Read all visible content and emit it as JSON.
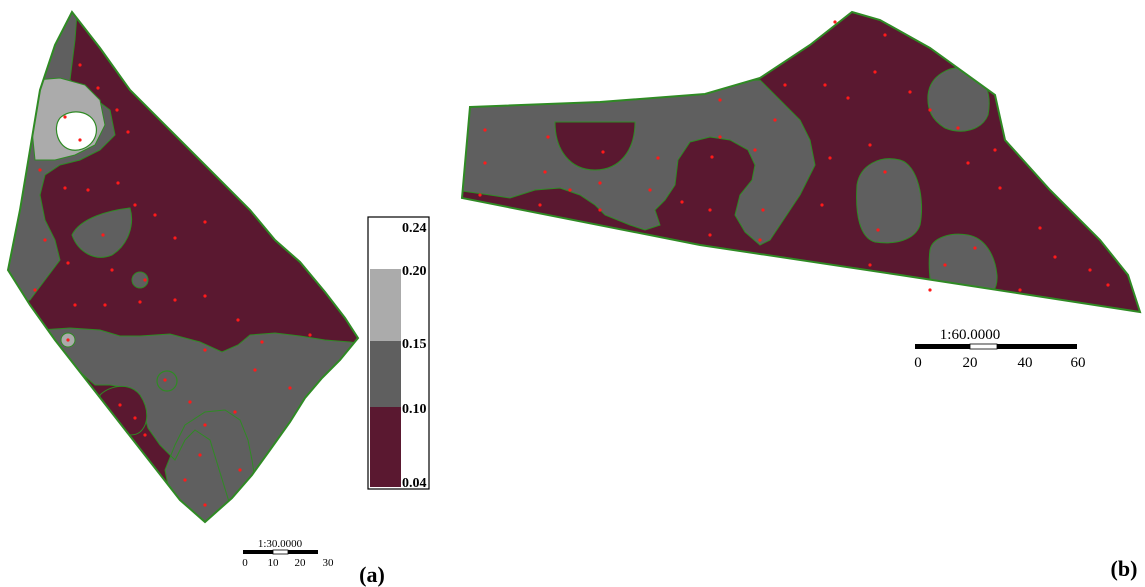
{
  "colors": {
    "class_low": "#5a1830",
    "class_mid": "#5f5f5f",
    "class_high": "#ababab",
    "class_top": "#ffffff",
    "boundary": "#2f8a24",
    "sample_point": "#ff1a1a"
  },
  "panel_a": {
    "tag": "(a)",
    "scale_text": "1:30.0000",
    "scale_ticks": [
      "0",
      "10",
      "20",
      "30"
    ]
  },
  "panel_b": {
    "tag": "(b)",
    "scale_text": "1:60.0000",
    "scale_ticks": [
      "0",
      "20",
      "40",
      "60"
    ]
  },
  "legend": {
    "breaks": [
      "0.24",
      "0.20",
      "0.15",
      "0.10",
      "0.04"
    ],
    "classes": [
      {
        "range": [
          0.2,
          0.24
        ],
        "color_key": "class_top"
      },
      {
        "range": [
          0.15,
          0.2
        ],
        "color_key": "class_high"
      },
      {
        "range": [
          0.1,
          0.15
        ],
        "color_key": "class_mid"
      },
      {
        "range": [
          0.04,
          0.1
        ],
        "color_key": "class_low"
      }
    ]
  }
}
